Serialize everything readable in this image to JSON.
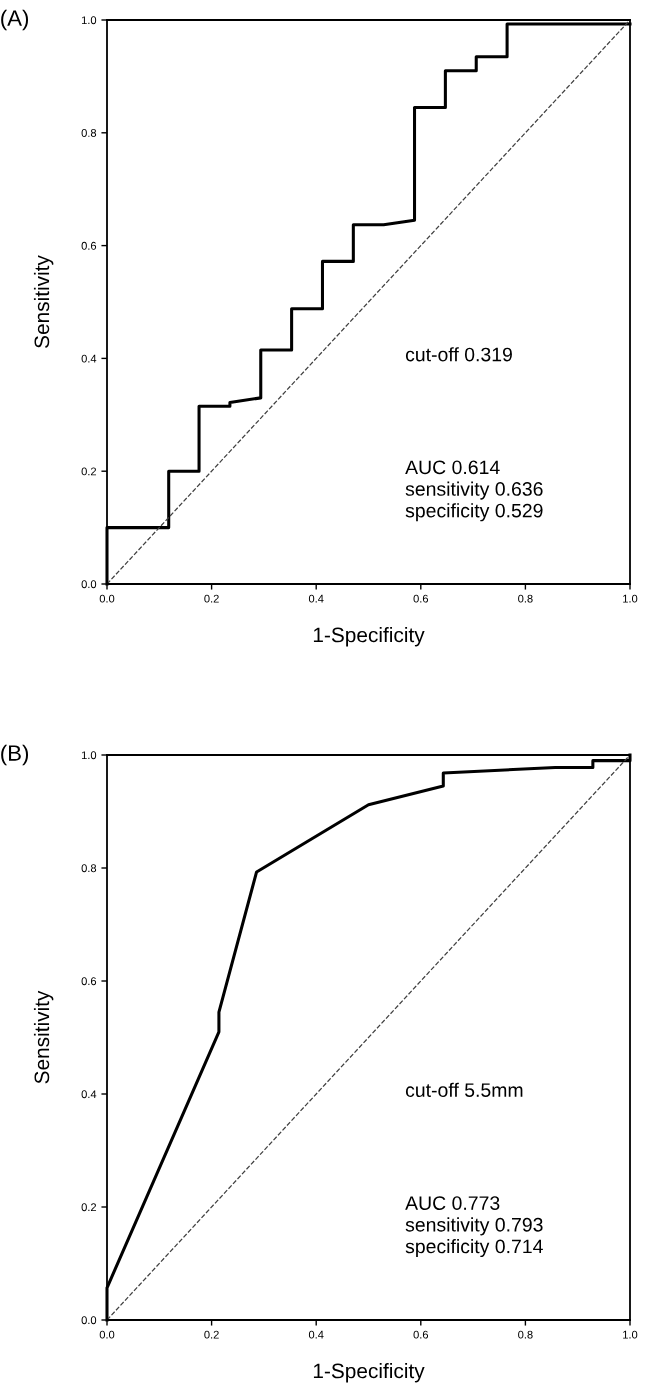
{
  "chart_data": [
    {
      "type": "line",
      "title": "(A)",
      "xlabel": "1-Specificity",
      "ylabel": "Sensitivity",
      "xlim": [
        0,
        1
      ],
      "ylim": [
        0,
        1
      ],
      "xticks": [
        {
          "value": 0,
          "label": "0.0"
        },
        {
          "value": 0.2,
          "label": "0.2"
        },
        {
          "value": 0.4,
          "label": "0.4"
        },
        {
          "value": 0.6,
          "label": "0.6"
        },
        {
          "value": 0.8,
          "label": "0.8"
        },
        {
          "value": 1,
          "label": "1.0"
        }
      ],
      "yticks": [
        {
          "value": 0,
          "label": "0.0"
        },
        {
          "value": 0.2,
          "label": "0.2"
        },
        {
          "value": 0.4,
          "label": "0.4"
        },
        {
          "value": 0.6,
          "label": "0.6"
        },
        {
          "value": 0.8,
          "label": "0.8"
        },
        {
          "value": 1,
          "label": "1.0"
        }
      ],
      "grid": false,
      "legend": false,
      "annotations": [
        "cut-off 0.319",
        "AUC 0.614\nsensitivity 0.636\nspecificity 0.529"
      ],
      "series": [
        {
          "color": "#000000",
          "line_style": "solid",
          "x": [
            0,
            0,
            0.118,
            0.118,
            0.176,
            0.176,
            0.235,
            0.235,
            0.294,
            0.294,
            0.353,
            0.353,
            0.412,
            0.412,
            0.471,
            0.471,
            0.529,
            0.588,
            0.588,
            0.647,
            0.647,
            0.706,
            0.706,
            0.765,
            0.765,
            1
          ],
          "values": [
            0,
            0.1,
            0.1,
            0.2,
            0.2,
            0.315,
            0.315,
            0.322,
            0.33,
            0.415,
            0.415,
            0.488,
            0.488,
            0.572,
            0.572,
            0.637,
            0.637,
            0.645,
            0.845,
            0.845,
            0.91,
            0.91,
            0.935,
            0.935,
            0.993,
            0.993
          ]
        },
        {
          "color": "#404040",
          "line_style": "dashed",
          "x": [
            0,
            1
          ],
          "values": [
            0,
            1
          ]
        }
      ]
    },
    {
      "type": "line",
      "title": "(B)",
      "xlabel": "1-Specificity",
      "ylabel": "Sensitivity",
      "xlim": [
        0,
        1
      ],
      "ylim": [
        0,
        1
      ],
      "xticks": [
        {
          "value": 0,
          "label": "0.0"
        },
        {
          "value": 0.2,
          "label": "0.2"
        },
        {
          "value": 0.4,
          "label": "0.4"
        },
        {
          "value": 0.6,
          "label": "0.6"
        },
        {
          "value": 0.8,
          "label": "0.8"
        },
        {
          "value": 1,
          "label": "1.0"
        }
      ],
      "yticks": [
        {
          "value": 0,
          "label": "0.0"
        },
        {
          "value": 0.2,
          "label": "0.2"
        },
        {
          "value": 0.4,
          "label": "0.4"
        },
        {
          "value": 0.6,
          "label": "0.6"
        },
        {
          "value": 0.8,
          "label": "0.8"
        },
        {
          "value": 1,
          "label": "1.0"
        }
      ],
      "grid": false,
      "legend": false,
      "annotations": [
        "cut-off 5.5mm",
        "AUC 0.773\nsensitivity 0.793\nspecificity 0.714"
      ],
      "series": [
        {
          "color": "#000000",
          "line_style": "solid",
          "x": [
            0,
            0,
            0.214,
            0.214,
            0.286,
            0.5,
            0.643,
            0.643,
            0.857,
            0.929,
            0.929,
            1,
            1
          ],
          "values": [
            0,
            0.057,
            0.51,
            0.545,
            0.793,
            0.912,
            0.945,
            0.968,
            0.978,
            0.978,
            0.99,
            0.99,
            1
          ]
        },
        {
          "color": "#404040",
          "line_style": "dashed",
          "x": [
            0,
            1
          ],
          "values": [
            0,
            1
          ]
        }
      ]
    }
  ]
}
